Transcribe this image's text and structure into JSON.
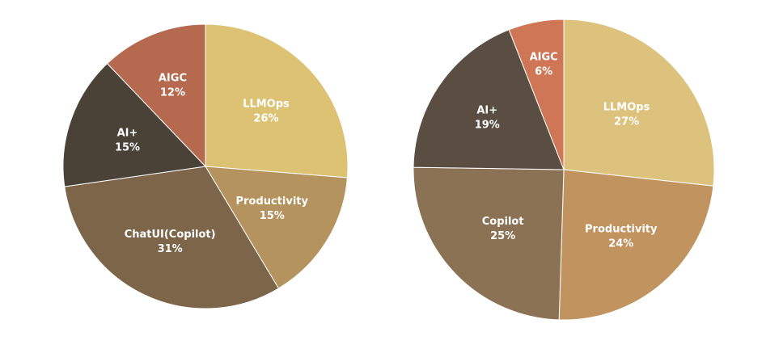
{
  "chart_data": [
    {
      "type": "pie",
      "slices": [
        {
          "label": "LLMOps",
          "percent_label": "26%",
          "value": 26,
          "color": "#DDC274"
        },
        {
          "label": "Productivity",
          "percent_label": "15%",
          "value": 15,
          "color": "#B4935F"
        },
        {
          "label": "ChatUI(Copilot)",
          "percent_label": "31%",
          "value": 31,
          "color": "#7D654A"
        },
        {
          "label": "AI+",
          "percent_label": "15%",
          "value": 15,
          "color": "#4A4137"
        },
        {
          "label": "AIGC",
          "percent_label": "12%",
          "value": 12,
          "color": "#B5694E"
        }
      ]
    },
    {
      "type": "pie",
      "slices": [
        {
          "label": "LLMOps",
          "percent_label": "27%",
          "value": 27,
          "color": "#DDC27D"
        },
        {
          "label": "Productivity",
          "percent_label": "24%",
          "value": 24,
          "color": "#C0935F"
        },
        {
          "label": "Copilot",
          "percent_label": "25%",
          "value": 25,
          "color": "#8C7254"
        },
        {
          "label": "AI+",
          "percent_label": "19%",
          "value": 19,
          "color": "#5A4E43"
        },
        {
          "label": "AIGC",
          "percent_label": "6%",
          "value": 6,
          "color": "#CF7656"
        }
      ]
    }
  ]
}
